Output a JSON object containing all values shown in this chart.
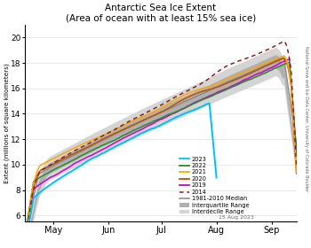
{
  "title_line1": "Antarctic Sea Ice Extent",
  "title_line2": "(Area of ocean with at least 15% sea ice)",
  "ylabel": "Extent (millions of square kilometers)",
  "date_label": "15 Aug 2023",
  "credit": "National Snow and Ice Data Center, University of Colorado Boulder",
  "ylim": [
    5.5,
    21.0
  ],
  "yticks": [
    6,
    8,
    10,
    12,
    14,
    16,
    18,
    20
  ],
  "colors": {
    "2023": "#00bfff",
    "2022": "#2e8b2e",
    "2021": "#ffa500",
    "2020": "#c05000",
    "2019": "#cc00cc",
    "2014": "#8b2020",
    "median": "#888888",
    "iqr": "#b0b0b0",
    "idr": "#d4d4d4"
  }
}
